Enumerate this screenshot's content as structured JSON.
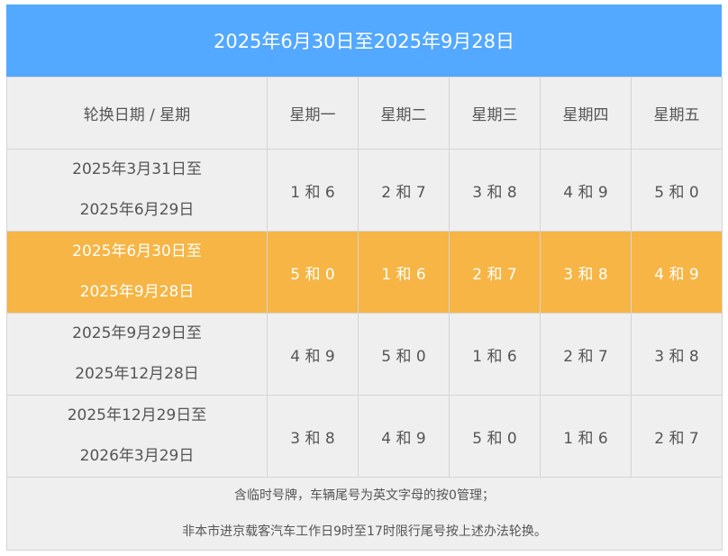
{
  "title": "2025年6月30日至2025年9月28日",
  "columns": [
    "轮换日期 / 星期",
    "星期一",
    "星期二",
    "星期三",
    "星期四",
    "星期五"
  ],
  "rows": [
    {
      "period": [
        "2025年3月31日至",
        "2025年6月29日"
      ],
      "values": [
        "1 和 6",
        "2 和 7",
        "3 和 8",
        "4 和 9",
        "5 和 0"
      ],
      "highlight": false
    },
    {
      "period": [
        "2025年6月30日至",
        "2025年9月28日"
      ],
      "values": [
        "5 和 0",
        "1 和 6",
        "2 和 7",
        "3 和 8",
        "4 和 9"
      ],
      "highlight": true
    },
    {
      "period": [
        "2025年9月29日至",
        "2025年12月28日"
      ],
      "values": [
        "4 和 9",
        "5 和 0",
        "1 和 6",
        "2 和 7",
        "3 和 8"
      ],
      "highlight": false
    },
    {
      "period": [
        "2025年12月29日至",
        "2026年3月29日"
      ],
      "values": [
        "3 和 8",
        "4 和 9",
        "5 和 0",
        "1 和 6",
        "2 和 7"
      ],
      "highlight": false
    }
  ],
  "notes": [
    "含临时号牌，车辆尾号为英文字母的按0管理；",
    "非本市进京载客汽车工作日9时至17时限行尾号按上述办法轮换。"
  ],
  "colors": {
    "header_bg": "#53a8ff",
    "highlight_bg": "#f6b544",
    "cell_bg": "#efefef"
  }
}
